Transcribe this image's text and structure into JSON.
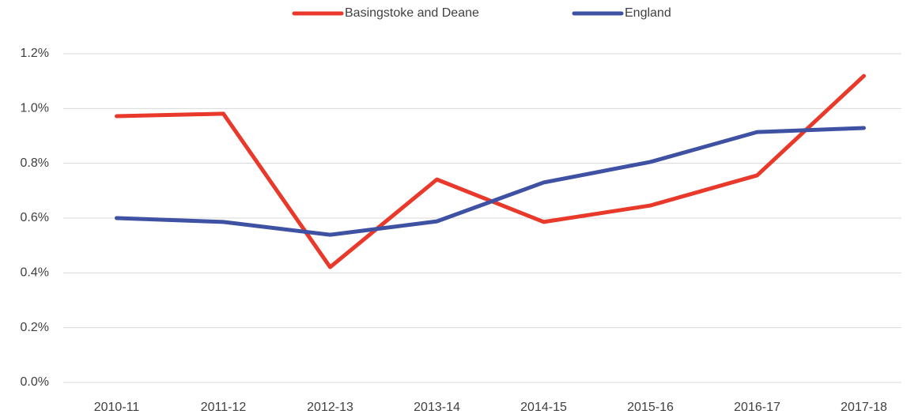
{
  "chart_data": {
    "type": "line",
    "categories": [
      "2010-11",
      "2011-12",
      "2012-13",
      "2013-14",
      "2014-15",
      "2015-16",
      "2016-17",
      "2017-18"
    ],
    "series": [
      {
        "name": "Basingstoke and Deane",
        "color": "#e8392b",
        "values": [
          0.972,
          0.981,
          0.421,
          0.741,
          0.586,
          0.646,
          0.756,
          1.119
        ]
      },
      {
        "name": "England",
        "color": "#3f51a3",
        "values": [
          0.6,
          0.586,
          0.539,
          0.588,
          0.73,
          0.805,
          0.914,
          0.929
        ]
      }
    ],
    "ylim": [
      0,
      1.2
    ],
    "yticks": [
      {
        "value": 0,
        "label": "0.0%"
      },
      {
        "value": 0.2,
        "label": "0.2%"
      },
      {
        "value": 0.4,
        "label": "0.4%"
      },
      {
        "value": 0.6,
        "label": "0.6%"
      },
      {
        "value": 0.8,
        "label": "0.8%"
      },
      {
        "value": 1.0,
        "label": "1.0%"
      },
      {
        "value": 1.2,
        "label": "1.2%"
      }
    ],
    "grid": true,
    "legend": "top"
  }
}
